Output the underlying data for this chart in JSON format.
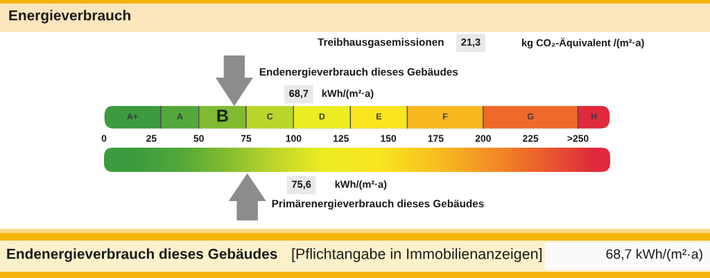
{
  "chart_data": {
    "type": "bar",
    "orientation": "horizontal",
    "stacked": true,
    "title": "Energieverbrauch",
    "categories": [
      null
    ],
    "series": [
      {
        "name": "A+",
        "color": "#3c9b3f",
        "values": [
          30
        ]
      },
      {
        "name": "A",
        "color": "#52a83b",
        "values": [
          20
        ]
      },
      {
        "name": "B",
        "color": "#7fba30",
        "values": [
          25
        ]
      },
      {
        "name": "C",
        "color": "#b9d42b",
        "values": [
          25
        ]
      },
      {
        "name": "D",
        "color": "#ecec22",
        "values": [
          30
        ]
      },
      {
        "name": "E",
        "color": "#f9e61f",
        "values": [
          30
        ]
      },
      {
        "name": "F",
        "color": "#f8b820",
        "values": [
          40
        ]
      },
      {
        "name": "G",
        "color": "#ee6a2b",
        "values": [
          50
        ]
      },
      {
        "name": "H",
        "color": "#e02a3c",
        "values": [
          17
        ]
      }
    ],
    "xlim": [
      0,
      267
    ],
    "xticks": [
      0,
      25,
      50,
      75,
      100,
      125,
      150,
      175,
      200,
      225,
      {
        "value": 250,
        "label": ">250"
      }
    ],
    "ref_lines": [
      {
        "axis": "x",
        "value": 68.7,
        "label": "Endenergieverbrauch dieses Gebäudes",
        "color": "#8c8c8c"
      },
      {
        "axis": "x",
        "value": 75.6,
        "label": "Primärenergieverbrauch dieses Gebäudes",
        "color": "#8c8c8c"
      }
    ],
    "annotations": [
      "68,7",
      "kWh/(m²·a)",
      "75,6",
      "kWh/(m²·a)",
      "Treibhausgasemissionen",
      "21,3",
      "kg CO₂-Äquivalent /(m²·a)",
      "Endenergieverbrauch dieses Gebäudes",
      "[Pflichtangabe in Immobilienanzeigen]",
      "68,7 kWh/(m²·a)"
    ]
  }
}
